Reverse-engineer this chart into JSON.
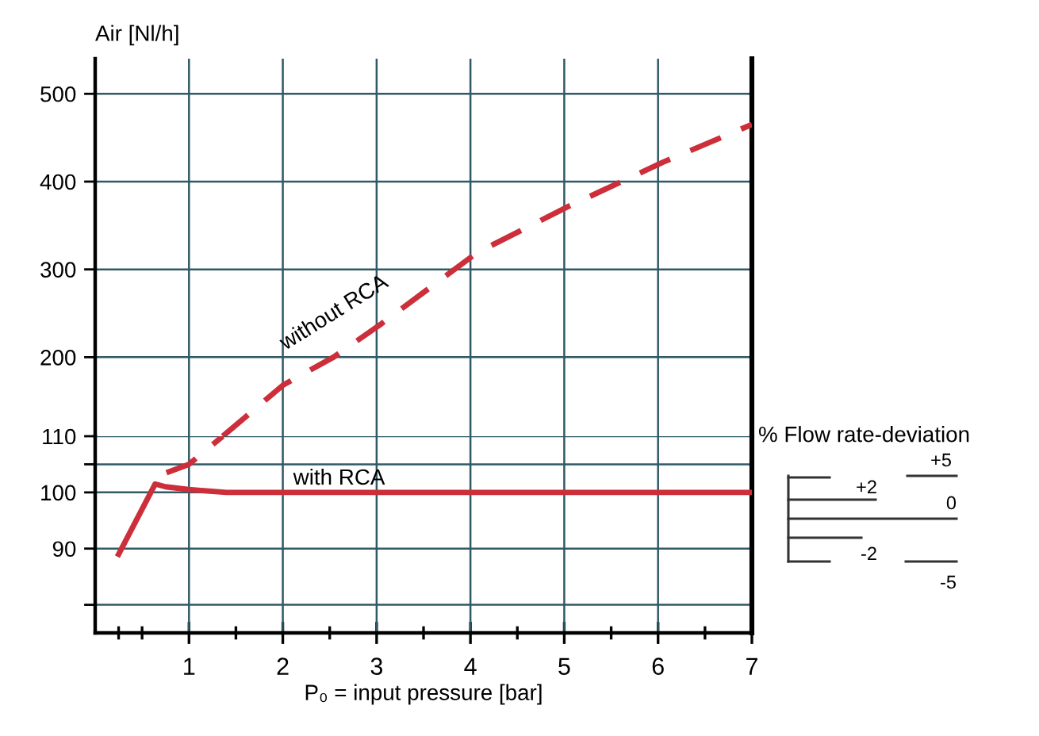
{
  "chart_data": [
    {
      "type": "line",
      "ylabel": "Air [Nl/h]",
      "xlim": [
        0,
        7
      ],
      "xticks": [
        1,
        2,
        3,
        4,
        5,
        6,
        7
      ],
      "ylim": [
        110,
        540
      ],
      "yticks": [
        200,
        300,
        400,
        500
      ],
      "tick_labels": "y",
      "grid": true,
      "legend": false,
      "series": [
        {
          "name": "without RCA",
          "color": "#cc2e3a",
          "line_style": "dashed",
          "x": [
            1.36,
            2.0,
            2.54,
            3.05,
            4.07,
            5.05,
            6.05,
            7.0
          ],
          "values": [
            110,
            168,
            200,
            238,
            319,
            372,
            422,
            465
          ]
        }
      ]
    },
    {
      "type": "line",
      "xlabel": "P₀ = input pressure [bar]",
      "xlim": [
        0,
        7
      ],
      "xticks": [
        {
          "value": 0.25,
          "label": null
        },
        {
          "value": 0.5,
          "label": null
        },
        1,
        {
          "value": 1.5,
          "label": null
        },
        2,
        {
          "value": 2.5,
          "label": null
        },
        3,
        {
          "value": 3.5,
          "label": null
        },
        4,
        {
          "value": 4.5,
          "label": null
        },
        5,
        {
          "value": 5.5,
          "label": null
        },
        6,
        {
          "value": 6.5,
          "label": null
        },
        7
      ],
      "ylim": [
        75,
        110
      ],
      "yticks": [
        {
          "value": 80,
          "label": null
        },
        90,
        100,
        {
          "value": 105,
          "label": null
        },
        110
      ],
      "grid": true,
      "legend": false,
      "series": [
        {
          "name": "with RCA",
          "color": "#cc2e3a",
          "line_style": "solid",
          "x": [
            0.25,
            0.64,
            0.75,
            1.0,
            1.4,
            2,
            3,
            4,
            5,
            6,
            7
          ],
          "values": [
            89,
            101.5,
            101,
            100.5,
            100,
            100,
            100,
            100,
            100,
            100,
            100
          ]
        },
        {
          "color": "#cc2e3a",
          "line_style": "dashed",
          "x": [
            0.76,
            1.0,
            1.36
          ],
          "values": [
            103.5,
            105,
            110
          ]
        }
      ],
      "annotations": [
        "% Flow rate-deviation",
        "+5",
        "+2",
        "0",
        "-2",
        "-5"
      ]
    }
  ]
}
